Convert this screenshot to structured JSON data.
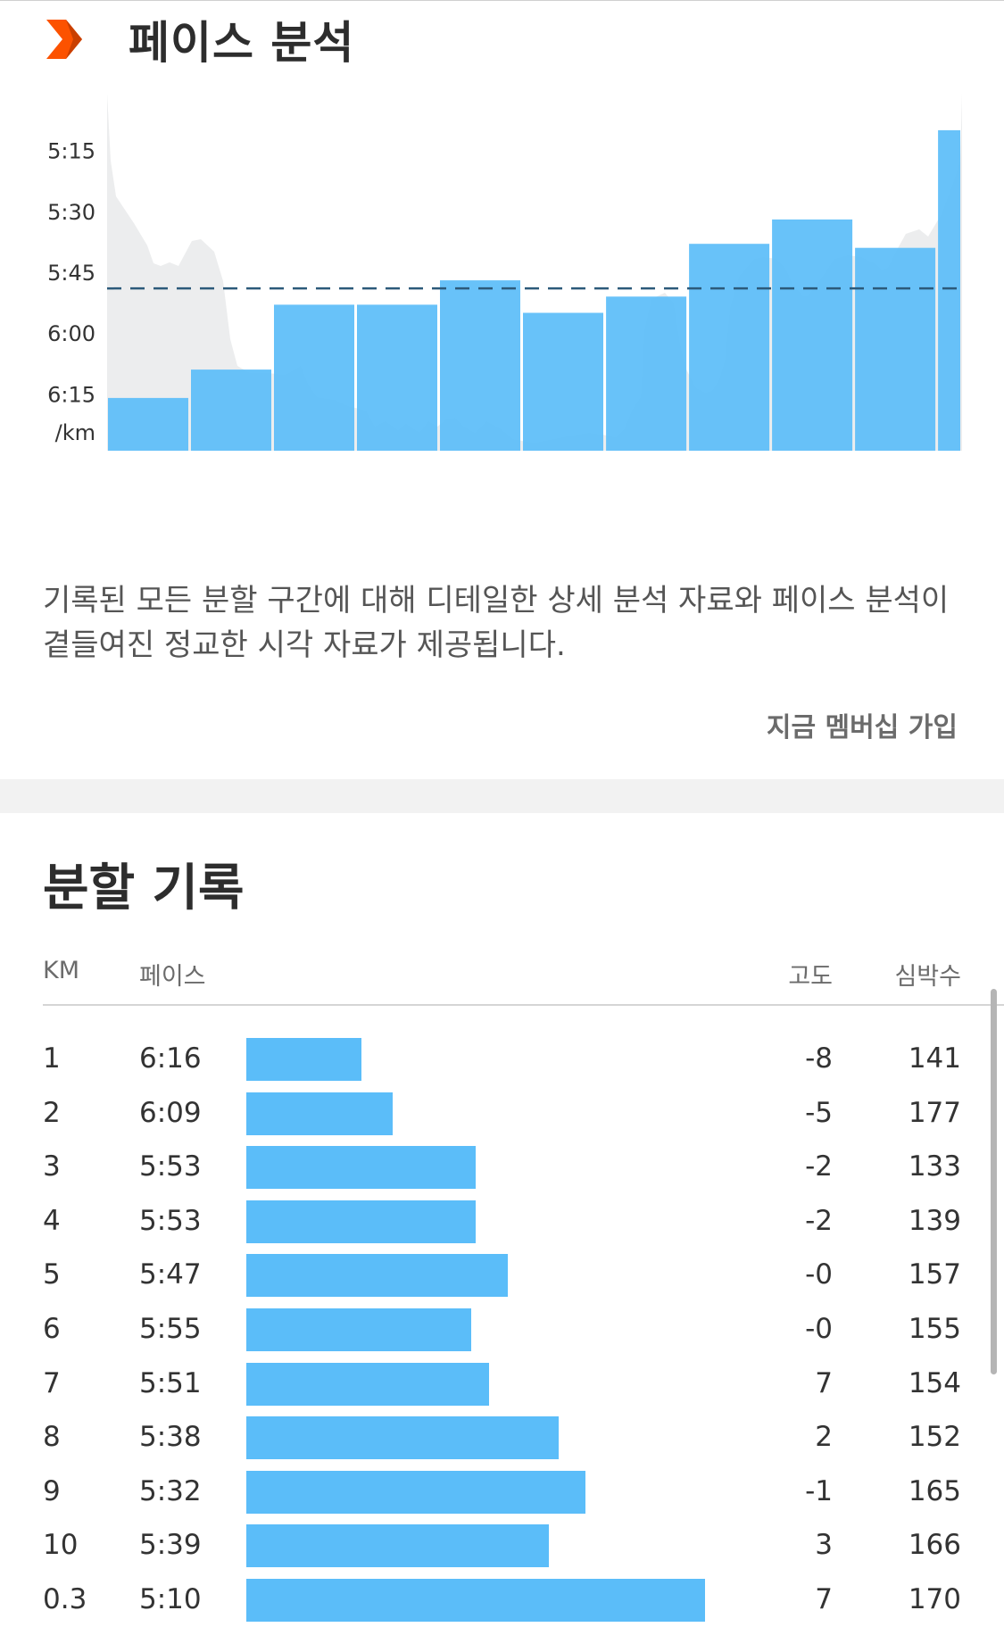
{
  "pace_section": {
    "title": "페이스 분석",
    "description": "기록된 모든 분할 구간에 대해 디테일한 상세 분석 자료와 페이스 분석이 곁들여진 정교한 시각 자료가 제공됩니다.",
    "join_link": "지금 멤버십 가입",
    "logo_icon": "chevron-right-icon",
    "brand_color": "#fc5200"
  },
  "chart_data": {
    "type": "bar",
    "categories": [
      "1",
      "2",
      "3",
      "4",
      "5",
      "6",
      "7",
      "8",
      "9",
      "10",
      "0.3"
    ],
    "values": [
      376,
      369,
      353,
      353,
      347,
      355,
      351,
      338,
      332,
      339,
      310
    ],
    "widths_km": [
      1,
      1,
      1,
      1,
      1,
      1,
      1,
      1,
      1,
      1,
      0.3
    ],
    "y_tick_labels": [
      "5:15",
      "5:30",
      "5:45",
      "6:00",
      "6:15"
    ],
    "y_ticks_seconds": [
      315,
      330,
      345,
      360,
      375
    ],
    "y_unit_label": "/km",
    "average_pace_seconds": 349,
    "y_range_seconds": [
      301,
      389
    ],
    "bar_color": "#5bbdf9",
    "average_line": "dashed",
    "grid": false
  },
  "splits_section": {
    "title": "분할 기록",
    "headers": {
      "km": "KM",
      "pace": "페이스",
      "elevation": "고도",
      "heart_rate": "심박수"
    },
    "bar_color": "#5bbdf9",
    "rows": [
      {
        "km": "1",
        "pace": "6:16",
        "elevation": "-8",
        "heart_rate": "141",
        "pace_fraction": 0.25
      },
      {
        "km": "2",
        "pace": "6:09",
        "elevation": "-5",
        "heart_rate": "177",
        "pace_fraction": 0.32
      },
      {
        "km": "3",
        "pace": "5:53",
        "elevation": "-2",
        "heart_rate": "133",
        "pace_fraction": 0.5
      },
      {
        "km": "4",
        "pace": "5:53",
        "elevation": "-2",
        "heart_rate": "139",
        "pace_fraction": 0.5
      },
      {
        "km": "5",
        "pace": "5:47",
        "elevation": "-0",
        "heart_rate": "157",
        "pace_fraction": 0.57
      },
      {
        "km": "6",
        "pace": "5:55",
        "elevation": "-0",
        "heart_rate": "155",
        "pace_fraction": 0.49
      },
      {
        "km": "7",
        "pace": "5:51",
        "elevation": "7",
        "heart_rate": "154",
        "pace_fraction": 0.53
      },
      {
        "km": "8",
        "pace": "5:38",
        "elevation": "2",
        "heart_rate": "152",
        "pace_fraction": 0.68
      },
      {
        "km": "9",
        "pace": "5:32",
        "elevation": "-1",
        "heart_rate": "165",
        "pace_fraction": 0.74
      },
      {
        "km": "10",
        "pace": "5:39",
        "elevation": "3",
        "heart_rate": "166",
        "pace_fraction": 0.66
      },
      {
        "km": "0.3",
        "pace": "5:10",
        "elevation": "7",
        "heart_rate": "170",
        "pace_fraction": 1.0
      }
    ]
  }
}
